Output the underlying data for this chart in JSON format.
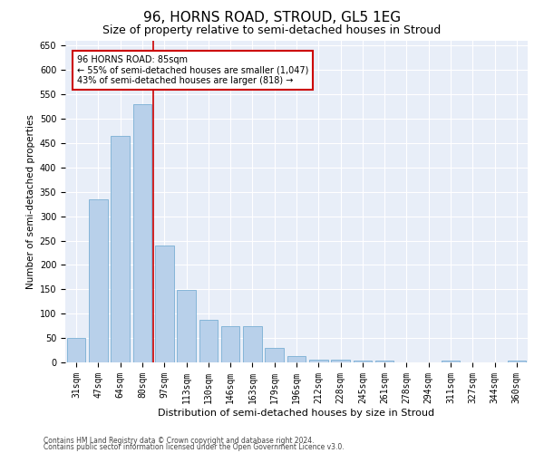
{
  "title": "96, HORNS ROAD, STROUD, GL5 1EG",
  "subtitle": "Size of property relative to semi-detached houses in Stroud",
  "xlabel": "Distribution of semi-detached houses by size in Stroud",
  "ylabel": "Number of semi-detached properties",
  "categories": [
    "31sqm",
    "47sqm",
    "64sqm",
    "80sqm",
    "97sqm",
    "113sqm",
    "130sqm",
    "146sqm",
    "163sqm",
    "179sqm",
    "196sqm",
    "212sqm",
    "228sqm",
    "245sqm",
    "261sqm",
    "278sqm",
    "294sqm",
    "311sqm",
    "327sqm",
    "344sqm",
    "360sqm"
  ],
  "values": [
    50,
    335,
    465,
    530,
    240,
    148,
    88,
    75,
    75,
    30,
    13,
    5,
    5,
    4,
    4,
    0,
    0,
    4,
    0,
    0,
    4
  ],
  "bar_color": "#b8d0ea",
  "bar_edge_color": "#7aafd4",
  "vline_color": "#cc0000",
  "annotation_text": "96 HORNS ROAD: 85sqm\n← 55% of semi-detached houses are smaller (1,047)\n43% of semi-detached houses are larger (818) →",
  "annotation_box_color": "white",
  "annotation_box_edge_color": "#cc0000",
  "ylim": [
    0,
    660
  ],
  "yticks": [
    0,
    50,
    100,
    150,
    200,
    250,
    300,
    350,
    400,
    450,
    500,
    550,
    600,
    650
  ],
  "background_color": "#e8eef8",
  "footer_line1": "Contains HM Land Registry data © Crown copyright and database right 2024.",
  "footer_line2": "Contains public sector information licensed under the Open Government Licence v3.0.",
  "title_fontsize": 11,
  "subtitle_fontsize": 9,
  "xlabel_fontsize": 8,
  "ylabel_fontsize": 7.5,
  "tick_fontsize": 7,
  "footer_fontsize": 5.5,
  "ann_fontsize": 7
}
